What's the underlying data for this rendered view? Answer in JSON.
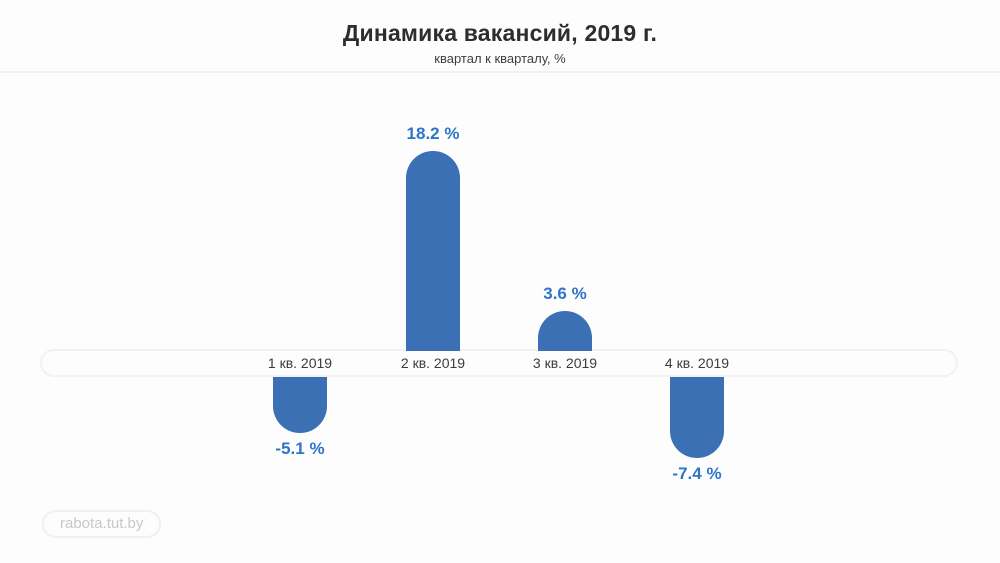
{
  "header": {
    "title": "Динамика вакансий, 2019 г.",
    "subtitle": "квартал к кварталу, %"
  },
  "source_badge": "rabota.tut.by",
  "colors": {
    "bar": "#3b70b4",
    "value_label": "#2e74c9",
    "axis_line": "#f2f2f2",
    "category_label": "#3c3c3c"
  },
  "chart_data": {
    "type": "bar",
    "title": "Динамика вакансий, 2019 г.",
    "subtitle": "квартал к кварталу, %",
    "categories": [
      "1 кв. 2019",
      "2 кв. 2019",
      "3 кв. 2019",
      "4 кв. 2019"
    ],
    "values": [
      -5.1,
      18.2,
      3.6,
      -7.4
    ],
    "value_labels": [
      "-5.1 %",
      "18.2 %",
      "3.6 %",
      "-7.4 %"
    ],
    "xlabel": "",
    "ylabel": "%",
    "ylim": [
      -10,
      20
    ],
    "baseline": 0,
    "grid": false,
    "legend": false
  }
}
